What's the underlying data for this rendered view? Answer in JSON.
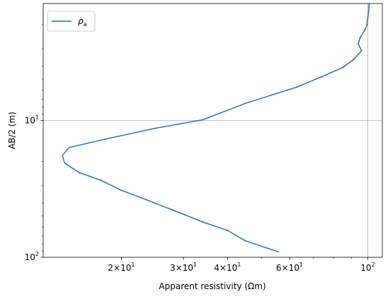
{
  "chart_data": {
    "type": "line",
    "title": "",
    "xlabel": "Apparent resistivity (Ωm)",
    "ylabel": "AB/2 (m)",
    "xscale": "log",
    "yscale": "log",
    "y_inverted": true,
    "xlim": [
      12.0,
      110.0
    ],
    "ylim": [
      100.0,
      1.4
    ],
    "grid": true,
    "legend": {
      "placement": "upper-left",
      "entries": [
        {
          "label": "ρ",
          "subscript": "a",
          "color": "#1f77b4"
        }
      ]
    },
    "x_tick_labels": [
      {
        "value": 20,
        "base": "2×10",
        "exp": "1"
      },
      {
        "value": 30,
        "base": "3×10",
        "exp": "1"
      },
      {
        "value": 40,
        "base": "4×10",
        "exp": "1"
      },
      {
        "value": 60,
        "base": "6×10",
        "exp": "1"
      },
      {
        "value": 100,
        "base": "10",
        "exp": "2"
      }
    ],
    "y_tick_labels": [
      {
        "value": 10,
        "base": "10",
        "exp": "1"
      },
      {
        "value": 100,
        "base": "10",
        "exp": "2"
      }
    ],
    "series": [
      {
        "name": "ρa",
        "color": "#1f77b4",
        "marker_color": "#d62728",
        "x": [
          101,
          100.5,
          100,
          99.5,
          98,
          95,
          94,
          96,
          91,
          85,
          74,
          63,
          45,
          34,
          25,
          18,
          14.2,
          13.6,
          13.8,
          15.2,
          17.5,
          20,
          23.5,
          28,
          34,
          40,
          45,
          56
        ],
        "y": [
          1.4,
          1.6,
          1.8,
          2.0,
          2.2,
          2.5,
          2.75,
          3.1,
          3.6,
          4.1,
          4.8,
          5.7,
          7.5,
          9.9,
          11.4,
          13.7,
          15.8,
          18.0,
          20.5,
          24.1,
          27.4,
          32.4,
          37.9,
          45.2,
          55.2,
          63.6,
          75.9,
          91.6
        ],
        "markers": [
          false,
          true,
          true,
          true,
          true,
          true,
          true,
          true,
          true,
          true,
          true,
          true,
          true,
          true,
          true,
          true,
          false,
          false,
          false,
          true,
          true,
          true,
          true,
          true,
          true,
          true,
          true,
          false
        ]
      }
    ]
  }
}
